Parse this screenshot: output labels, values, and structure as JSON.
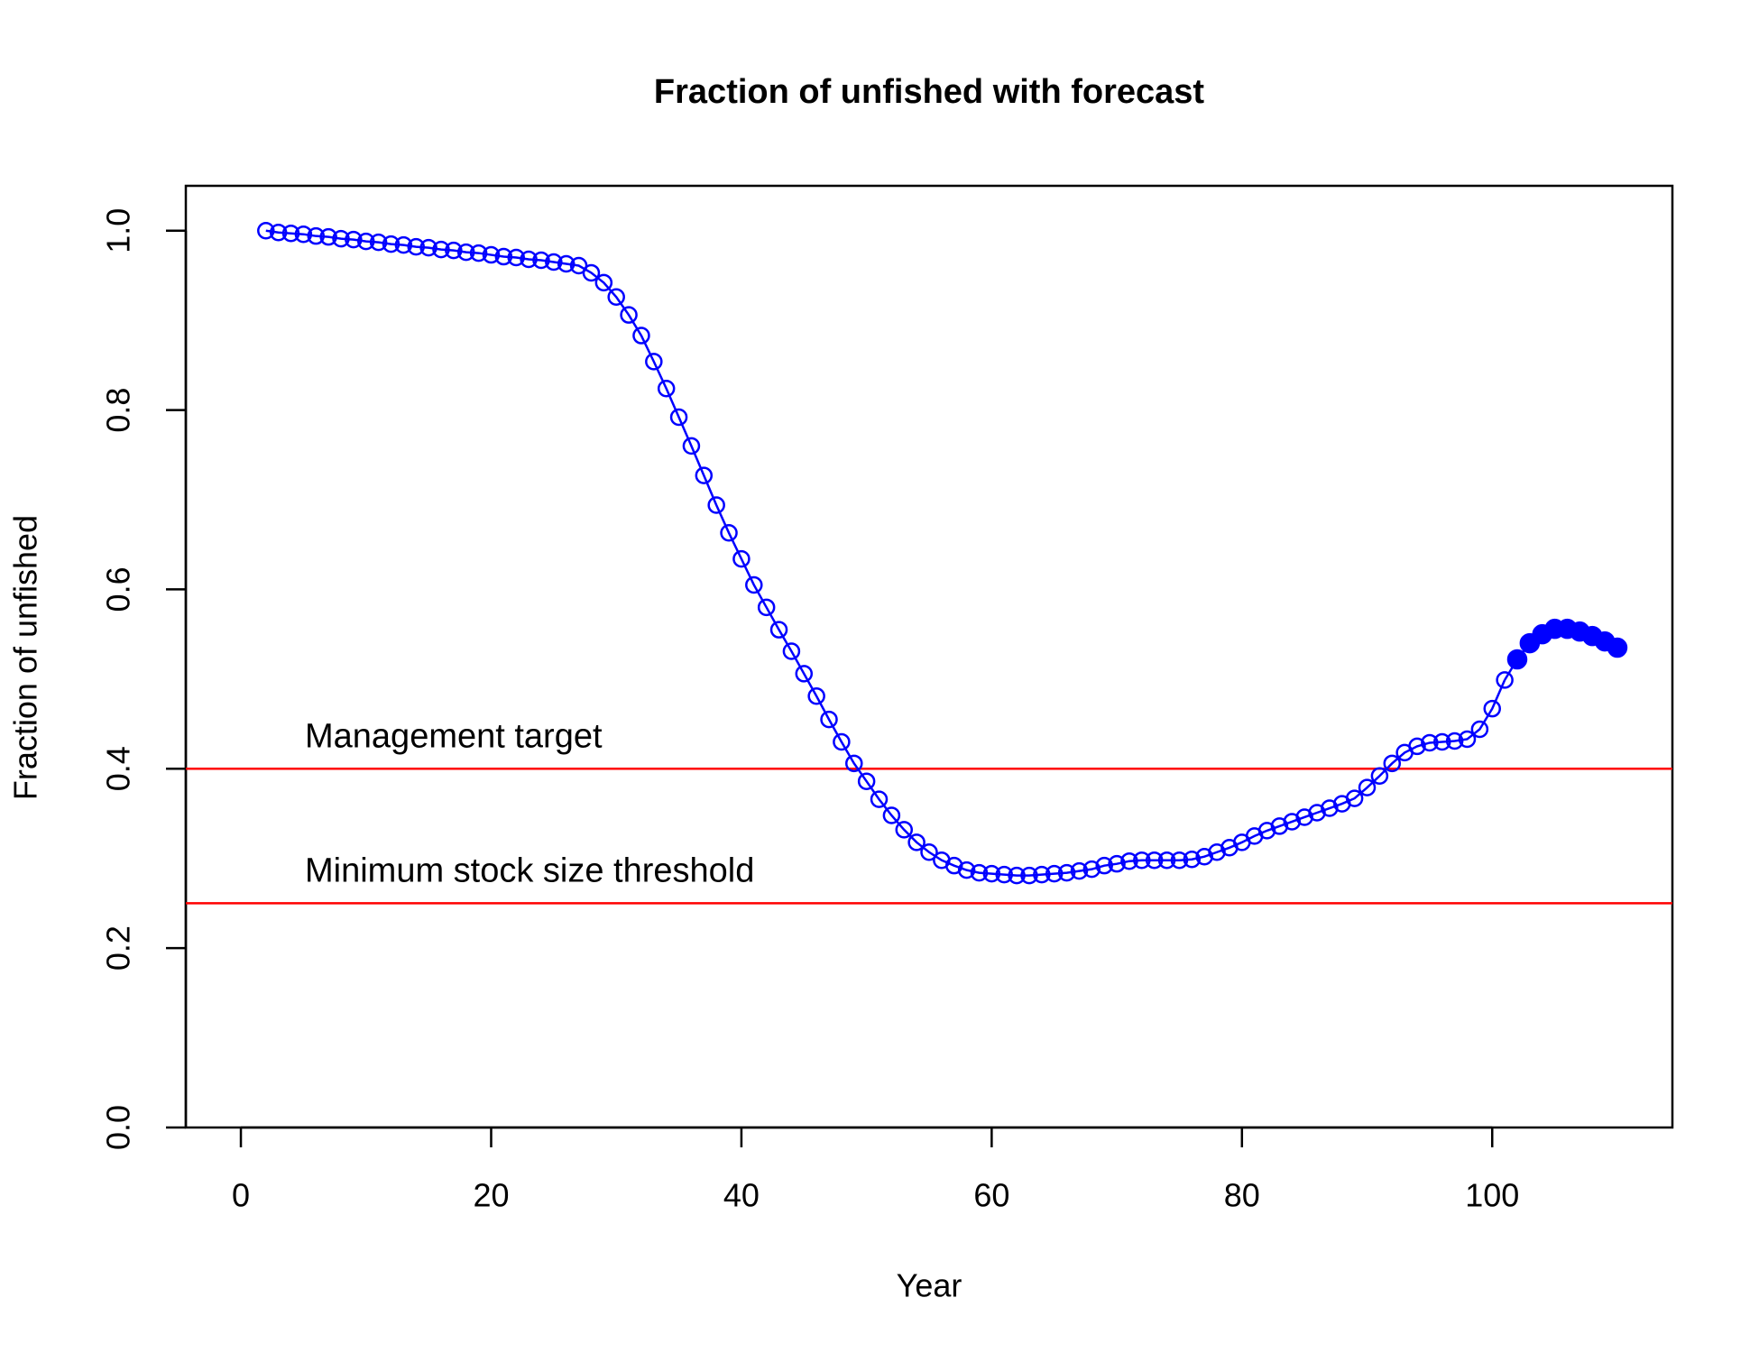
{
  "chart_data": {
    "type": "line",
    "title": "Fraction of unfished with forecast",
    "x_label": "Year",
    "y_label": "Fraction of unfished",
    "xlim": [
      -4.4,
      114.4
    ],
    "ylim": [
      0,
      1.05
    ],
    "xticks": [
      0,
      20,
      40,
      60,
      80,
      100
    ],
    "yticks": [
      {
        "value": 0,
        "label": "0.0"
      },
      {
        "value": 0.2,
        "label": "0.2"
      },
      {
        "value": 0.4,
        "label": "0.4"
      },
      {
        "value": 0.6,
        "label": "0.6"
      },
      {
        "value": 0.8,
        "label": "0.8"
      },
      {
        "value": 1,
        "label": "1.0"
      }
    ],
    "series": [
      {
        "color": "#0000ff",
        "marker": "open",
        "x": [
          2,
          3,
          4,
          5,
          6,
          7,
          8,
          9,
          10,
          11,
          12,
          13,
          14,
          15,
          16,
          17,
          18,
          19,
          20,
          21,
          22,
          23,
          24,
          25,
          26,
          27,
          28,
          29,
          30,
          31,
          32,
          33,
          34,
          35,
          36,
          37,
          38,
          39,
          40,
          41,
          42,
          43,
          44,
          45,
          46,
          47,
          48,
          49,
          50,
          51,
          52,
          53,
          54,
          55,
          56,
          57,
          58,
          59,
          60,
          61,
          62,
          63,
          64,
          65,
          66,
          67,
          68,
          69,
          70,
          71,
          72,
          73,
          74,
          75,
          76,
          77,
          78,
          79,
          80,
          81,
          82,
          83,
          84,
          85,
          86,
          87,
          88,
          89,
          90,
          91,
          92,
          93,
          94,
          95,
          96,
          97,
          98,
          99,
          100,
          101
        ],
        "values": [
          1.0,
          0.998,
          0.997,
          0.996,
          0.994,
          0.993,
          0.991,
          0.99,
          0.988,
          0.987,
          0.985,
          0.984,
          0.982,
          0.981,
          0.979,
          0.978,
          0.976,
          0.975,
          0.973,
          0.971,
          0.97,
          0.968,
          0.967,
          0.965,
          0.963,
          0.961,
          0.953,
          0.942,
          0.926,
          0.906,
          0.883,
          0.854,
          0.824,
          0.792,
          0.76,
          0.727,
          0.694,
          0.663,
          0.634,
          0.605,
          0.58,
          0.555,
          0.531,
          0.506,
          0.481,
          0.455,
          0.43,
          0.406,
          0.386,
          0.366,
          0.348,
          0.332,
          0.318,
          0.307,
          0.298,
          0.292,
          0.287,
          0.284,
          0.283,
          0.282,
          0.281,
          0.281,
          0.282,
          0.283,
          0.284,
          0.286,
          0.288,
          0.292,
          0.294,
          0.297,
          0.298,
          0.298,
          0.298,
          0.298,
          0.299,
          0.302,
          0.307,
          0.312,
          0.318,
          0.325,
          0.331,
          0.336,
          0.341,
          0.346,
          0.351,
          0.356,
          0.361,
          0.367,
          0.379,
          0.392,
          0.406,
          0.418,
          0.425,
          0.429,
          0.43,
          0.431,
          0.433,
          0.444,
          0.467,
          0.499
        ]
      },
      {
        "color": "#0000ff",
        "marker": "filled",
        "x": [
          102,
          103,
          104,
          105,
          106,
          107,
          108,
          109,
          110
        ],
        "values": [
          0.522,
          0.54,
          0.55,
          0.556,
          0.556,
          0.553,
          0.548,
          0.542,
          0.535
        ]
      }
    ],
    "hlines": [
      {
        "value": 0.4,
        "label": "Management target",
        "color": "#ff0000"
      },
      {
        "value": 0.25,
        "label": "Minimum stock size threshold",
        "color": "#ff0000"
      }
    ]
  }
}
